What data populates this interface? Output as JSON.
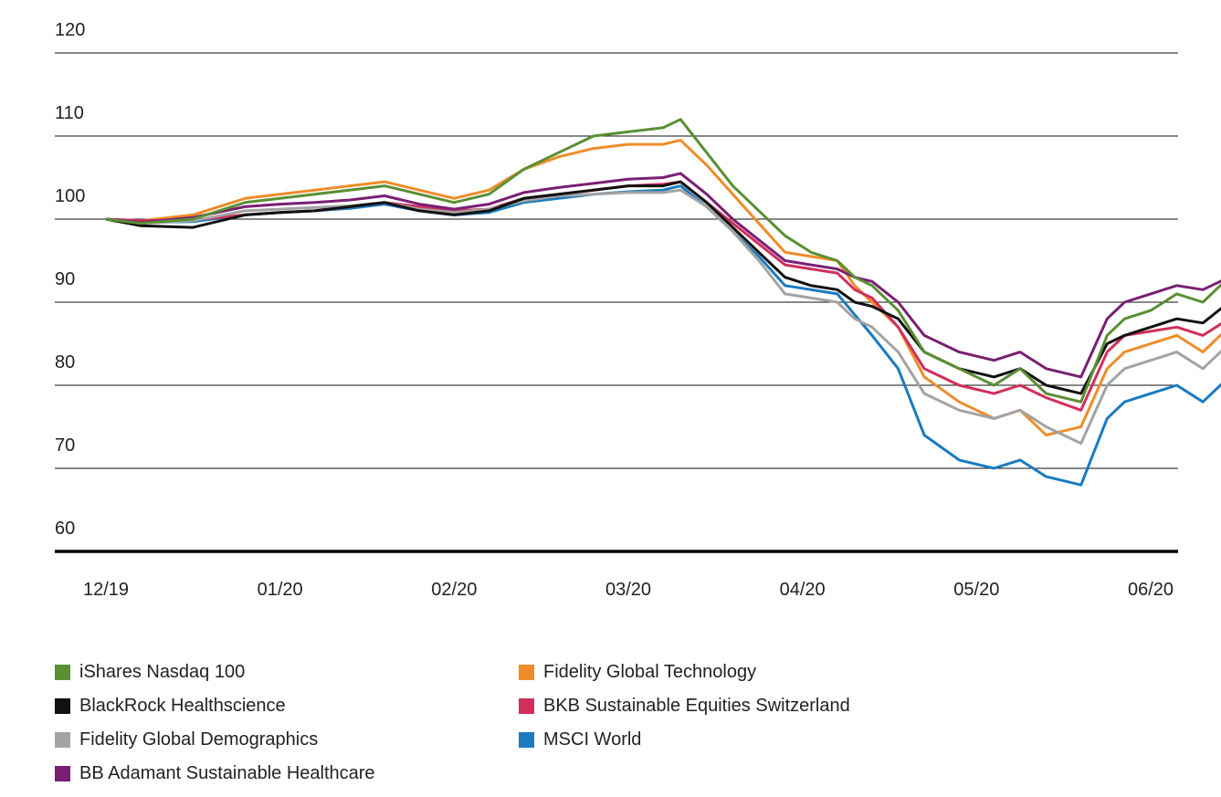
{
  "chart_data": {
    "type": "line",
    "ylim": [
      60,
      120
    ],
    "yticks": [
      "120",
      "110",
      "100",
      "90",
      "80",
      "70",
      "60"
    ],
    "xticks": [
      "12/19",
      "01/20",
      "02/20",
      "03/20",
      "04/20",
      "05/20",
      "06/20"
    ],
    "grid": true,
    "legend_position": "bottom",
    "x_range": [
      0,
      6.5
    ],
    "series": [
      {
        "name": "iShares Nasdaq 100",
        "color": "#5a8f33",
        "points": [
          [
            0.0,
            100
          ],
          [
            0.2,
            99.5
          ],
          [
            0.5,
            100
          ],
          [
            0.8,
            102
          ],
          [
            1.0,
            102.5
          ],
          [
            1.2,
            103
          ],
          [
            1.4,
            103.5
          ],
          [
            1.6,
            104
          ],
          [
            1.8,
            103
          ],
          [
            2.0,
            102
          ],
          [
            2.2,
            103
          ],
          [
            2.4,
            106
          ],
          [
            2.6,
            108
          ],
          [
            2.8,
            110
          ],
          [
            3.0,
            110.5
          ],
          [
            3.2,
            111
          ],
          [
            3.3,
            112
          ],
          [
            3.45,
            108
          ],
          [
            3.6,
            104
          ],
          [
            3.75,
            101
          ],
          [
            3.9,
            98
          ],
          [
            4.05,
            96
          ],
          [
            4.2,
            95
          ],
          [
            4.3,
            93
          ],
          [
            4.4,
            92
          ],
          [
            4.55,
            89
          ],
          [
            4.7,
            84
          ],
          [
            4.9,
            82
          ],
          [
            5.1,
            80
          ],
          [
            5.25,
            82
          ],
          [
            5.4,
            79
          ],
          [
            5.6,
            78
          ],
          [
            5.75,
            86
          ],
          [
            5.85,
            88
          ],
          [
            6.0,
            89
          ],
          [
            6.15,
            91
          ],
          [
            6.3,
            90
          ],
          [
            6.45,
            93
          ]
        ]
      },
      {
        "name": "BlackRock Healthscience",
        "color": "#111111",
        "points": [
          [
            0.0,
            100
          ],
          [
            0.2,
            99.2
          ],
          [
            0.5,
            99
          ],
          [
            0.8,
            100.5
          ],
          [
            1.0,
            100.8
          ],
          [
            1.2,
            101
          ],
          [
            1.4,
            101.5
          ],
          [
            1.6,
            102
          ],
          [
            1.8,
            101
          ],
          [
            2.0,
            100.5
          ],
          [
            2.2,
            101
          ],
          [
            2.4,
            102.5
          ],
          [
            2.6,
            103
          ],
          [
            2.8,
            103.5
          ],
          [
            3.0,
            104
          ],
          [
            3.2,
            104
          ],
          [
            3.3,
            104.5
          ],
          [
            3.45,
            102
          ],
          [
            3.6,
            99
          ],
          [
            3.75,
            96
          ],
          [
            3.9,
            93
          ],
          [
            4.05,
            92
          ],
          [
            4.2,
            91.5
          ],
          [
            4.3,
            90
          ],
          [
            4.4,
            89.5
          ],
          [
            4.55,
            88
          ],
          [
            4.7,
            84
          ],
          [
            4.9,
            82
          ],
          [
            5.1,
            81
          ],
          [
            5.25,
            82
          ],
          [
            5.4,
            80
          ],
          [
            5.6,
            79
          ],
          [
            5.75,
            85
          ],
          [
            5.85,
            86
          ],
          [
            6.0,
            87
          ],
          [
            6.15,
            88
          ],
          [
            6.3,
            87.5
          ],
          [
            6.45,
            90
          ]
        ]
      },
      {
        "name": "Fidelity Global Demographics",
        "color": "#a3a3a3",
        "points": [
          [
            0.0,
            100
          ],
          [
            0.2,
            99.5
          ],
          [
            0.5,
            99.8
          ],
          [
            0.8,
            101
          ],
          [
            1.0,
            101.2
          ],
          [
            1.2,
            101.4
          ],
          [
            1.4,
            101.6
          ],
          [
            1.6,
            102
          ],
          [
            1.8,
            101.2
          ],
          [
            2.0,
            100.8
          ],
          [
            2.2,
            101.2
          ],
          [
            2.4,
            102.2
          ],
          [
            2.6,
            102.8
          ],
          [
            2.8,
            103
          ],
          [
            3.0,
            103.2
          ],
          [
            3.2,
            103.2
          ],
          [
            3.3,
            103.5
          ],
          [
            3.45,
            101.5
          ],
          [
            3.6,
            98.5
          ],
          [
            3.75,
            95
          ],
          [
            3.9,
            91
          ],
          [
            4.05,
            90.5
          ],
          [
            4.2,
            90
          ],
          [
            4.3,
            88
          ],
          [
            4.4,
            87
          ],
          [
            4.55,
            84
          ],
          [
            4.7,
            79
          ],
          [
            4.9,
            77
          ],
          [
            5.1,
            76
          ],
          [
            5.25,
            77
          ],
          [
            5.4,
            75
          ],
          [
            5.6,
            73
          ],
          [
            5.75,
            80
          ],
          [
            5.85,
            82
          ],
          [
            6.0,
            83
          ],
          [
            6.15,
            84
          ],
          [
            6.3,
            82
          ],
          [
            6.45,
            85
          ]
        ]
      },
      {
        "name": "BB Adamant Sustainable Healthcare",
        "color": "#7a1f74",
        "points": [
          [
            0.0,
            100
          ],
          [
            0.2,
            99.6
          ],
          [
            0.5,
            100.2
          ],
          [
            0.8,
            101.5
          ],
          [
            1.0,
            101.8
          ],
          [
            1.2,
            102
          ],
          [
            1.4,
            102.3
          ],
          [
            1.6,
            102.8
          ],
          [
            1.8,
            101.8
          ],
          [
            2.0,
            101.2
          ],
          [
            2.2,
            101.8
          ],
          [
            2.4,
            103.2
          ],
          [
            2.6,
            103.8
          ],
          [
            2.8,
            104.3
          ],
          [
            3.0,
            104.8
          ],
          [
            3.2,
            105
          ],
          [
            3.3,
            105.5
          ],
          [
            3.45,
            103
          ],
          [
            3.6,
            100
          ],
          [
            3.75,
            97.5
          ],
          [
            3.9,
            95
          ],
          [
            4.05,
            94.5
          ],
          [
            4.2,
            94
          ],
          [
            4.3,
            93
          ],
          [
            4.4,
            92.5
          ],
          [
            4.55,
            90
          ],
          [
            4.7,
            86
          ],
          [
            4.9,
            84
          ],
          [
            5.1,
            83
          ],
          [
            5.25,
            84
          ],
          [
            5.4,
            82
          ],
          [
            5.6,
            81
          ],
          [
            5.75,
            88
          ],
          [
            5.85,
            90
          ],
          [
            6.0,
            91
          ],
          [
            6.15,
            92
          ],
          [
            6.3,
            91.5
          ],
          [
            6.45,
            93
          ]
        ]
      },
      {
        "name": "Fidelity Global Technology",
        "color": "#ef8c2a",
        "points": [
          [
            0.0,
            100
          ],
          [
            0.2,
            99.8
          ],
          [
            0.5,
            100.5
          ],
          [
            0.8,
            102.5
          ],
          [
            1.0,
            103
          ],
          [
            1.2,
            103.5
          ],
          [
            1.4,
            104
          ],
          [
            1.6,
            104.5
          ],
          [
            1.8,
            103.5
          ],
          [
            2.0,
            102.5
          ],
          [
            2.2,
            103.5
          ],
          [
            2.4,
            106
          ],
          [
            2.6,
            107.5
          ],
          [
            2.8,
            108.5
          ],
          [
            3.0,
            109
          ],
          [
            3.2,
            109
          ],
          [
            3.3,
            109.5
          ],
          [
            3.45,
            106.5
          ],
          [
            3.6,
            103
          ],
          [
            3.75,
            99.5
          ],
          [
            3.9,
            96
          ],
          [
            4.05,
            95.5
          ],
          [
            4.2,
            95
          ],
          [
            4.3,
            92
          ],
          [
            4.4,
            90
          ],
          [
            4.55,
            87
          ],
          [
            4.7,
            81
          ],
          [
            4.9,
            78
          ],
          [
            5.1,
            76
          ],
          [
            5.25,
            77
          ],
          [
            5.4,
            74
          ],
          [
            5.6,
            75
          ],
          [
            5.75,
            82
          ],
          [
            5.85,
            84
          ],
          [
            6.0,
            85
          ],
          [
            6.15,
            86
          ],
          [
            6.3,
            84
          ],
          [
            6.45,
            87
          ]
        ]
      },
      {
        "name": "BKB Sustainable Equities Switzerland",
        "color": "#d12f5c",
        "points": [
          [
            0.0,
            100
          ],
          [
            0.2,
            99.8
          ],
          [
            0.5,
            99.9
          ],
          [
            0.8,
            100.5
          ],
          [
            1.0,
            100.8
          ],
          [
            1.2,
            101
          ],
          [
            1.4,
            101.5
          ],
          [
            1.6,
            102
          ],
          [
            1.8,
            101.5
          ],
          [
            2.0,
            101
          ],
          [
            2.2,
            101.2
          ],
          [
            2.4,
            102.5
          ],
          [
            2.6,
            103
          ],
          [
            2.8,
            103.5
          ],
          [
            3.0,
            104
          ],
          [
            3.2,
            104.2
          ],
          [
            3.3,
            104.5
          ],
          [
            3.45,
            102
          ],
          [
            3.6,
            99.5
          ],
          [
            3.75,
            97
          ],
          [
            3.9,
            94.5
          ],
          [
            4.05,
            94
          ],
          [
            4.2,
            93.5
          ],
          [
            4.3,
            91.5
          ],
          [
            4.4,
            90.5
          ],
          [
            4.55,
            87
          ],
          [
            4.7,
            82
          ],
          [
            4.9,
            80
          ],
          [
            5.1,
            79
          ],
          [
            5.25,
            80
          ],
          [
            5.4,
            78.5
          ],
          [
            5.6,
            77
          ],
          [
            5.75,
            84
          ],
          [
            5.85,
            86
          ],
          [
            6.0,
            86.5
          ],
          [
            6.15,
            87
          ],
          [
            6.3,
            86
          ],
          [
            6.45,
            88
          ]
        ]
      },
      {
        "name": "MSCI World",
        "color": "#1a7bc0",
        "points": [
          [
            0.0,
            100
          ],
          [
            0.2,
            99.6
          ],
          [
            0.5,
            99.7
          ],
          [
            0.8,
            100.5
          ],
          [
            1.0,
            100.8
          ],
          [
            1.2,
            101
          ],
          [
            1.4,
            101.3
          ],
          [
            1.6,
            101.8
          ],
          [
            1.8,
            101
          ],
          [
            2.0,
            100.5
          ],
          [
            2.2,
            100.8
          ],
          [
            2.4,
            102
          ],
          [
            2.6,
            102.5
          ],
          [
            2.8,
            103
          ],
          [
            3.0,
            103.3
          ],
          [
            3.2,
            103.5
          ],
          [
            3.3,
            104
          ],
          [
            3.45,
            101.5
          ],
          [
            3.6,
            98.5
          ],
          [
            3.75,
            95.5
          ],
          [
            3.9,
            92
          ],
          [
            4.05,
            91.5
          ],
          [
            4.2,
            91
          ],
          [
            4.3,
            88.5
          ],
          [
            4.4,
            86
          ],
          [
            4.55,
            82
          ],
          [
            4.7,
            74
          ],
          [
            4.9,
            71
          ],
          [
            5.1,
            70
          ],
          [
            5.25,
            71
          ],
          [
            5.4,
            69
          ],
          [
            5.6,
            68
          ],
          [
            5.75,
            76
          ],
          [
            5.85,
            78
          ],
          [
            6.0,
            79
          ],
          [
            6.15,
            80
          ],
          [
            6.3,
            78
          ],
          [
            6.45,
            81
          ]
        ]
      }
    ]
  },
  "legend": [
    {
      "label": "iShares Nasdaq 100",
      "color": "#5a8f33"
    },
    {
      "label": "Fidelity Global Technology",
      "color": "#ef8c2a"
    },
    {
      "label": "BlackRock Healthscience",
      "color": "#111111"
    },
    {
      "label": "BKB Sustainable Equities Switzerland",
      "color": "#d12f5c"
    },
    {
      "label": "Fidelity Global Demographics",
      "color": "#a3a3a3"
    },
    {
      "label": "MSCI World",
      "color": "#1a7bc0"
    },
    {
      "label": "BB Adamant Sustainable Healthcare",
      "color": "#7a1f74"
    }
  ]
}
